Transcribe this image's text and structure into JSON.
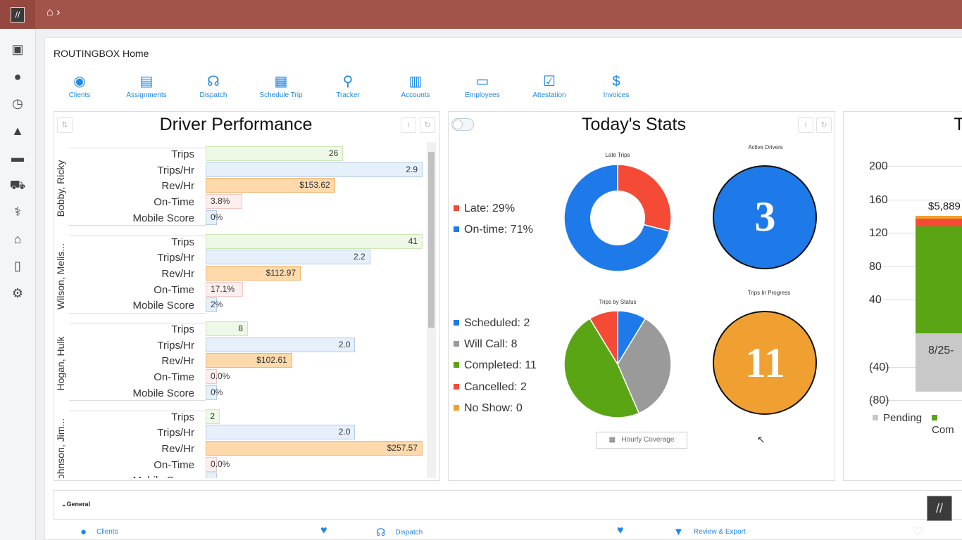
{
  "breadcrumb": {
    "home_icon": "home-icon",
    "separator": "›"
  },
  "sidebar": [
    "calendar-check-icon",
    "user-icon",
    "clock-icon",
    "road-icon",
    "money-card-icon",
    "truck-icon",
    "stethoscope-icon",
    "bank-icon",
    "file-icon",
    "gear-icon"
  ],
  "page_title": "ROUTINGBOX Home",
  "quick_actions": [
    {
      "label": "Clients",
      "icon": "◉"
    },
    {
      "label": "Assignments",
      "icon": "▤"
    },
    {
      "label": "Dispatch",
      "icon": "☊"
    },
    {
      "label": "Schedule Trip",
      "icon": "▦"
    },
    {
      "label": "Tracker",
      "icon": "⚲"
    },
    {
      "label": "Accounts",
      "icon": "▥"
    },
    {
      "label": "Employees",
      "icon": "▭"
    },
    {
      "label": "Attestation",
      "icon": "☑"
    },
    {
      "label": "Invoices",
      "icon": "$"
    }
  ],
  "driver_performance": {
    "title": "Driver Performance",
    "metrics": [
      "Trips",
      "Trips/Hr",
      "Rev/Hr",
      "On-Time",
      "Mobile Score"
    ],
    "max": {
      "Trips": 41,
      "Trips/Hr": 2.9,
      "Rev/Hr": 257.57,
      "On-Time": 100,
      "Mobile Score": 100
    },
    "drivers": [
      {
        "name": "Bobby, Ricky",
        "values": [
          26,
          2.9,
          153.62,
          3.8,
          0
        ],
        "labels": [
          "26",
          "2.9",
          "$153.62",
          "3.8%",
          "0%"
        ]
      },
      {
        "name": "Wilson, Melis...",
        "values": [
          41,
          2.2,
          112.97,
          17.1,
          2
        ],
        "labels": [
          "41",
          "2.2",
          "$112.97",
          "17.1%",
          "2%"
        ]
      },
      {
        "name": "Hogan, Hulk",
        "values": [
          8,
          2.0,
          102.61,
          0,
          0
        ],
        "labels": [
          "8",
          "2.0",
          "$102.61",
          "0.0%",
          "0%"
        ]
      },
      {
        "name": "Johnson, Jim...",
        "values": [
          2,
          2.0,
          257.57,
          0,
          0
        ],
        "labels": [
          "2",
          "2.0",
          "$257.57",
          "0.0%",
          ""
        ]
      }
    ]
  },
  "todays_stats": {
    "title": "Today's Stats",
    "late_trips": {
      "title": "Late Trips",
      "slices": [
        {
          "label": "Late: 29%",
          "value": 29,
          "color": "#f44a36"
        },
        {
          "label": "On-time: 71%",
          "value": 71,
          "color": "#1e7ae8"
        }
      ]
    },
    "active_drivers": {
      "title": "Active Drivers",
      "value": "3",
      "color": "#1e7ae8"
    },
    "trips_by_status": {
      "title": "Trips by Status",
      "slices": [
        {
          "label": "Scheduled: 2",
          "value": 2,
          "color": "#1e7ae8"
        },
        {
          "label": "Will Call: 8",
          "value": 8,
          "color": "#9a9a9a"
        },
        {
          "label": "Completed: 11",
          "value": 11,
          "color": "#5aa514"
        },
        {
          "label": "Cancelled: 2",
          "value": 2,
          "color": "#f44a36"
        },
        {
          "label": "No Show: 0",
          "value": 0,
          "color": "#f0a030"
        }
      ]
    },
    "trips_in_progress": {
      "title": "Trips In Progress",
      "value": "11",
      "color": "#f0a030"
    },
    "hourly_coverage": "Hourly Coverage"
  },
  "chart_data": {
    "type": "bar",
    "title": "T",
    "yticks": [
      "200",
      "160",
      "120",
      "80",
      "40",
      "(40)",
      "(80)"
    ],
    "ylim": [
      -80,
      200
    ],
    "categories": [
      "8/25-"
    ],
    "series": [
      {
        "name": "Pending",
        "values": [
          -70
        ],
        "color": "#c8c8c8"
      },
      {
        "name": "Com",
        "values": [
          128
        ],
        "color": "#5aa514"
      },
      {
        "name": "",
        "values": [
          9
        ],
        "color": "#f44a36"
      },
      {
        "name": "",
        "values": [
          3
        ],
        "color": "#f0a030"
      }
    ],
    "data_label": "$5,889"
  },
  "general": {
    "label": "General",
    "links": [
      {
        "label": "Clients"
      },
      {
        "label": "Dispatch"
      },
      {
        "label": "Review & Export"
      }
    ]
  }
}
